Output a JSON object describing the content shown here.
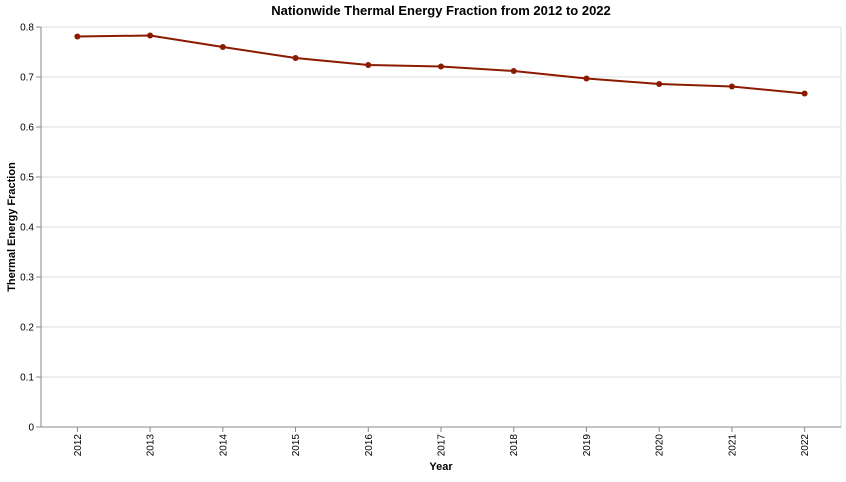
{
  "chart_data": {
    "type": "line",
    "title": "Nationwide Thermal Energy Fraction from 2012 to 2022",
    "xlabel": "Year",
    "ylabel": "Thermal Energy Fraction",
    "ylim": [
      0,
      0.8
    ],
    "yticks": [
      "0",
      "0.1",
      "0.2",
      "0.3",
      "0.4",
      "0.5",
      "0.6",
      "0.7",
      "0.8"
    ],
    "grid": true,
    "categories": [
      "2012",
      "2013",
      "2014",
      "2015",
      "2016",
      "2017",
      "2018",
      "2019",
      "2020",
      "2021",
      "2022"
    ],
    "series": [
      {
        "values": [
          0.781,
          0.783,
          0.76,
          0.738,
          0.724,
          0.721,
          0.712,
          0.697,
          0.686,
          0.681,
          0.667
        ],
        "color": "#8b1a00"
      }
    ]
  }
}
